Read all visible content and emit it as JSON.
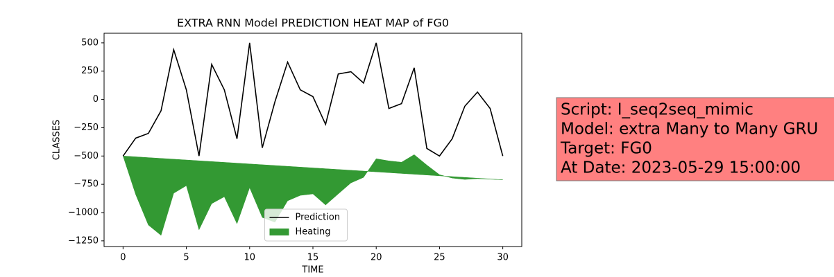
{
  "chart_data": {
    "type": "line",
    "title": "EXTRA RNN Model PREDICTION HEAT MAP of FG0",
    "x_label": "TIME",
    "y_label": "CLASSES",
    "x": [
      0,
      1,
      2,
      3,
      4,
      5,
      6,
      7,
      8,
      9,
      10,
      11,
      12,
      13,
      14,
      15,
      16,
      17,
      18,
      19,
      20,
      21,
      22,
      23,
      24,
      25,
      26,
      27,
      28,
      29,
      30
    ],
    "series": [
      {
        "name": "Prediction",
        "color": "#000000",
        "values": [
          -500,
          -342,
          -300,
          -100,
          440,
          85,
          -500,
          310,
          85,
          -348,
          500,
          -427,
          -20,
          330,
          85,
          25,
          -220,
          225,
          245,
          145,
          500,
          -80,
          -37,
          280,
          -433,
          -500,
          -348,
          -60,
          65,
          -80,
          -500
        ]
      },
      {
        "name": "Heating",
        "color": "#339933",
        "fill": true,
        "values": [
          -500,
          -507,
          -514,
          -521,
          -528,
          -535,
          -542,
          -549,
          -556,
          -563,
          -570,
          -577,
          -584,
          -591,
          -598,
          -605,
          -612,
          -619,
          -626,
          -633,
          -640,
          -647,
          -654,
          -661,
          -668,
          -675,
          -682,
          -689,
          -696,
          -703,
          -710
        ],
        "values2": [
          -500,
          -841,
          -1110,
          -1201,
          -829,
          -762,
          -1152,
          -921,
          -860,
          -1098,
          -780,
          -1043,
          -1085,
          -896,
          -848,
          -835,
          -933,
          -835,
          -738,
          -689,
          -524,
          -543,
          -555,
          -488,
          -580,
          -665,
          -695,
          -707,
          -700,
          -705,
          -710
        ]
      }
    ],
    "xlim": [
      -1.5,
      31.5
    ],
    "xticks": [
      0,
      5,
      10,
      15,
      20,
      25,
      30
    ],
    "ylim": [
      -1300,
      585
    ],
    "yticks": [
      {
        "value": -1250,
        "label": "−1250"
      },
      {
        "value": -1000,
        "label": "−1000"
      },
      {
        "value": -750,
        "label": "−750"
      },
      {
        "value": -500,
        "label": "−500"
      },
      {
        "value": -250,
        "label": "−250"
      },
      0,
      250,
      500
    ],
    "legend": "lower center",
    "annotation": {
      "lines": [
        "Script: I_seq2seq_mimic",
        "Model: extra Many to Many GRU",
        "Target: FG0",
        "At Date: 2023-05-29 15:00:00"
      ],
      "color": "#ff8080"
    }
  }
}
